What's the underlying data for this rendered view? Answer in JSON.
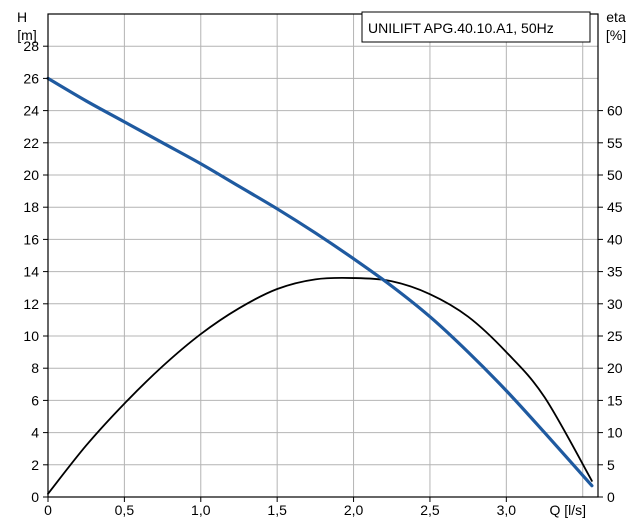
{
  "chart_data": {
    "type": "line",
    "title": "UNILIFT APG.40.10.A1, 50Hz",
    "x_axis": {
      "label": "Q [l/s]",
      "range": [
        0,
        3.6
      ],
      "ticks": [
        0,
        0.5,
        1.0,
        1.5,
        2.0,
        2.5,
        3.0
      ],
      "tick_labels": [
        "0",
        "0,5",
        "1,0",
        "1,5",
        "2,0",
        "2,5",
        "3,0"
      ]
    },
    "y_left": {
      "label_line1": "H",
      "label_line2": "[m]",
      "range": [
        0,
        30
      ],
      "ticks": [
        0,
        2,
        4,
        6,
        8,
        10,
        12,
        14,
        16,
        18,
        20,
        22,
        24,
        26,
        28
      ],
      "tick_labels": [
        "0",
        "2",
        "4",
        "6",
        "8",
        "10",
        "12",
        "14",
        "16",
        "18",
        "20",
        "22",
        "24",
        "26",
        "28"
      ]
    },
    "y_right": {
      "label_line1": "eta",
      "label_line2": "[%]",
      "range": [
        0,
        75
      ],
      "ticks": [
        0,
        5,
        10,
        15,
        20,
        25,
        30,
        35,
        40,
        45,
        50,
        55,
        60
      ],
      "tick_labels": [
        "0",
        "5",
        "10",
        "15",
        "20",
        "25",
        "30",
        "35",
        "40",
        "45",
        "50",
        "55",
        "60"
      ]
    },
    "grid": true,
    "series": [
      {
        "axis": "left",
        "color": "#1f5aa0",
        "x": [
          0,
          0.25,
          0.5,
          0.75,
          1.0,
          1.25,
          1.5,
          1.75,
          2.0,
          2.25,
          2.5,
          2.75,
          3.0,
          3.25,
          3.56
        ],
        "y": [
          26.0,
          24.6,
          23.3,
          22.0,
          20.7,
          19.3,
          17.9,
          16.4,
          14.8,
          13.1,
          11.2,
          9.0,
          6.6,
          4.0,
          0.7
        ]
      },
      {
        "axis": "right",
        "color": "#000000",
        "x": [
          0,
          0.25,
          0.5,
          0.75,
          1.0,
          1.25,
          1.5,
          1.75,
          2.0,
          2.25,
          2.5,
          2.75,
          3.0,
          3.25,
          3.56
        ],
        "y": [
          0.5,
          8.0,
          14.5,
          20.3,
          25.3,
          29.3,
          32.3,
          33.8,
          34.0,
          33.5,
          31.5,
          28.0,
          22.5,
          15.5,
          2.5
        ]
      }
    ]
  }
}
